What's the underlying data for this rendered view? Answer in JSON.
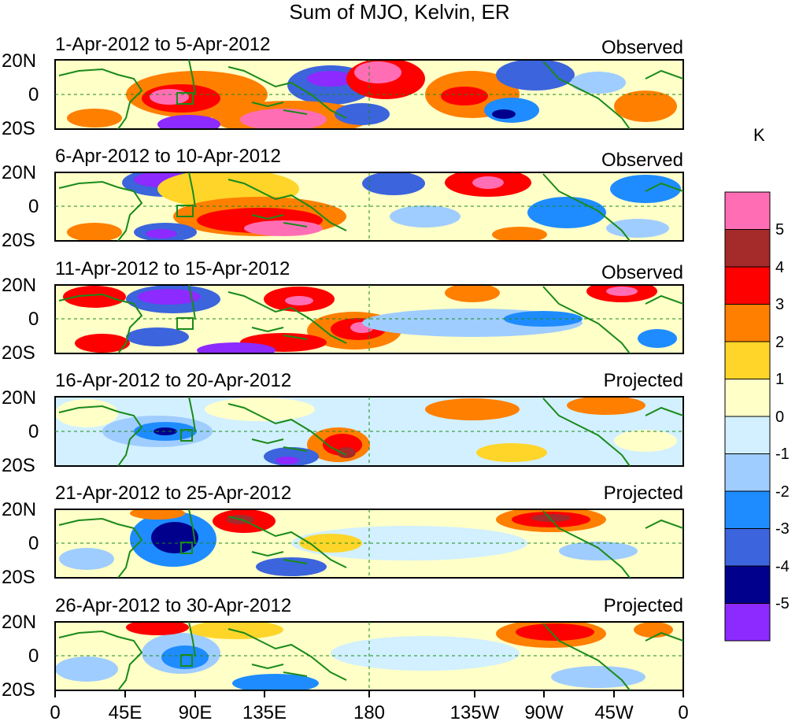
{
  "title": "Sum of MJO, Kelvin, ER",
  "units": "K",
  "panels": [
    {
      "dates": "1-Apr-2012 to 5-Apr-2012",
      "type": "Observed"
    },
    {
      "dates": "6-Apr-2012 to 10-Apr-2012",
      "type": "Observed"
    },
    {
      "dates": "11-Apr-2012 to 15-Apr-2012",
      "type": "Observed"
    },
    {
      "dates": "16-Apr-2012 to 20-Apr-2012",
      "type": "Projected"
    },
    {
      "dates": "21-Apr-2012 to 25-Apr-2012",
      "type": "Projected"
    },
    {
      "dates": "26-Apr-2012 to 30-Apr-2012",
      "type": "Projected"
    }
  ],
  "lat_labels": [
    "20N",
    "0",
    "20S"
  ],
  "lon_labels": [
    "0",
    "45E",
    "90E",
    "135E",
    "180",
    "135W",
    "90W",
    "45W",
    "0"
  ],
  "colorbar": {
    "labels": [
      "5",
      "4",
      "3",
      "2",
      "1",
      "0",
      "-1",
      "-2",
      "-3",
      "-4",
      "-5"
    ],
    "colors": [
      "#ff6eb4",
      "#a52a2a",
      "#ff0000",
      "#ff7f00",
      "#ffd52a",
      "#ffffc8",
      "#d2f0ff",
      "#a0cdff",
      "#1e8cff",
      "#3c64dc",
      "#00008c",
      "#8c2aff"
    ]
  }
}
